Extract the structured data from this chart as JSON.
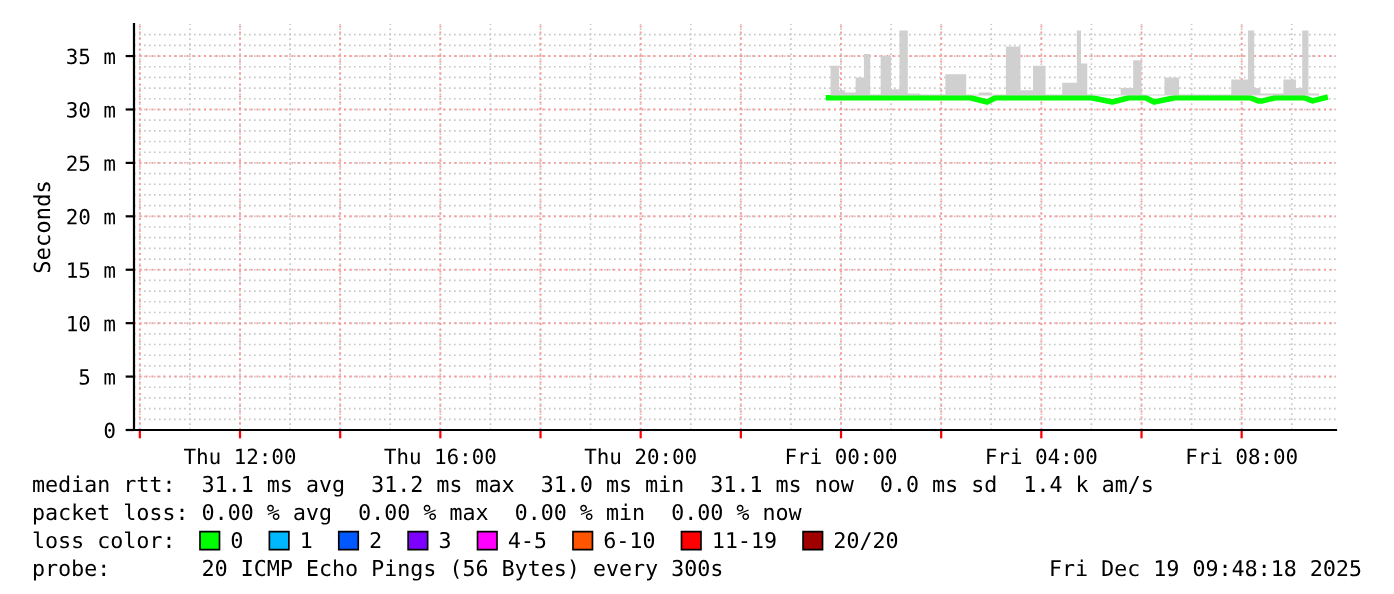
{
  "chart_data": {
    "type": "line",
    "ylabel": "Seconds",
    "legend_title": "loss color:",
    "x": [
      "2025-12-18T23:45",
      "2025-12-18T23:50",
      "2025-12-18T23:55",
      "2025-12-19T00:00",
      "2025-12-19T00:10",
      "2025-12-19T00:25",
      "2025-12-19T00:30",
      "2025-12-19T00:40",
      "2025-12-19T00:55",
      "2025-12-19T01:05",
      "2025-12-19T01:15",
      "2025-12-19T01:25",
      "2025-12-19T01:45",
      "2025-12-19T02:25",
      "2025-12-19T02:35",
      "2025-12-19T02:55",
      "2025-12-19T03:05",
      "2025-12-19T03:30",
      "2025-12-19T03:40",
      "2025-12-19T04:00",
      "2025-12-19T04:10",
      "2025-12-19T04:40",
      "2025-12-19T04:45",
      "2025-12-19T04:50",
      "2025-12-19T05:00",
      "2025-12-19T05:25",
      "2025-12-19T05:45",
      "2025-12-19T05:55",
      "2025-12-19T06:05",
      "2025-12-19T06:15",
      "2025-12-19T06:40",
      "2025-12-19T06:50",
      "2025-12-19T07:30",
      "2025-12-19T08:05",
      "2025-12-19T08:10",
      "2025-12-19T08:20",
      "2025-12-19T08:25",
      "2025-12-19T08:40",
      "2025-12-19T09:00",
      "2025-12-19T09:10",
      "2025-12-19T09:15",
      "2025-12-19T09:25",
      "2025-12-19T09:40"
    ],
    "series": [
      {
        "name": "0",
        "color": "#00ff00",
        "values": [
          31.1,
          31.1,
          31.1,
          31.1,
          31.1,
          31.1,
          31.1,
          31.1,
          31.1,
          31.1,
          31.1,
          31.1,
          31.1,
          31.1,
          31.1,
          30.7,
          31.1,
          31.1,
          31.1,
          31.1,
          31.1,
          31.1,
          31.1,
          31.1,
          31.1,
          30.7,
          31.1,
          31.1,
          31.1,
          30.7,
          31.1,
          31.1,
          31.1,
          31.1,
          31.1,
          30.8,
          30.8,
          31.1,
          31.1,
          31.1,
          31.1,
          30.8,
          31.1
        ],
        "lower": [
          31.3,
          31.3,
          31.3,
          31.3,
          31.3,
          31.3,
          31.3,
          31.3,
          31.3,
          31.3,
          31.3,
          31.3,
          31.3,
          31.3,
          31.3,
          31.3,
          31.3,
          31.3,
          31.3,
          31.3,
          31.3,
          31.3,
          31.3,
          31.3,
          31.3,
          31.3,
          31.3,
          31.3,
          31.3,
          31.3,
          31.3,
          31.3,
          31.3,
          31.3,
          31.3,
          31.3,
          31.3,
          31.3,
          31.3,
          31.3,
          31.3,
          31.3,
          31.3
        ],
        "upper": [
          31.3,
          34.1,
          34.1,
          31.8,
          31.6,
          33.0,
          35.2,
          31.4,
          35.0,
          31.9,
          37.4,
          31.5,
          31.4,
          33.3,
          31.4,
          31.6,
          31.4,
          35.9,
          31.8,
          34.1,
          31.4,
          32.5,
          37.4,
          34.3,
          31.4,
          31.4,
          32.0,
          34.6,
          31.4,
          31.4,
          33.0,
          31.4,
          31.4,
          32.8,
          37.4,
          32.0,
          31.5,
          31.5,
          32.8,
          32.0,
          37.4,
          31.5,
          31.3
        ]
      },
      {
        "name": "1",
        "color": "#00b8ff",
        "values": [
          null,
          null,
          null,
          null,
          null,
          null,
          null,
          null,
          null,
          null,
          null,
          null,
          null,
          null,
          null,
          null,
          null,
          null,
          null,
          null,
          null,
          null,
          null,
          null,
          null,
          null,
          null,
          null,
          null,
          null,
          null,
          null,
          null,
          null,
          null,
          null,
          null,
          null,
          null,
          null,
          null,
          null,
          null
        ]
      },
      {
        "name": "2",
        "color": "#0059ff",
        "values": [
          null,
          null,
          null,
          null,
          null,
          null,
          null,
          null,
          null,
          null,
          null,
          null,
          null,
          null,
          null,
          null,
          null,
          null,
          null,
          null,
          null,
          null,
          null,
          null,
          null,
          null,
          null,
          null,
          null,
          null,
          null,
          null,
          null,
          null,
          null,
          null,
          null,
          null,
          null,
          null,
          null,
          null,
          null
        ]
      },
      {
        "name": "3",
        "color": "#7e00ff",
        "values": [
          null,
          null,
          null,
          null,
          null,
          null,
          null,
          null,
          null,
          null,
          null,
          null,
          null,
          null,
          null,
          null,
          null,
          null,
          null,
          null,
          null,
          null,
          null,
          null,
          null,
          null,
          null,
          null,
          null,
          null,
          null,
          null,
          null,
          null,
          null,
          null,
          null,
          null,
          null,
          null,
          null,
          null,
          null
        ]
      },
      {
        "name": "4-5",
        "color": "#ff00ff",
        "values": [
          null,
          null,
          null,
          null,
          null,
          null,
          null,
          null,
          null,
          null,
          null,
          null,
          null,
          null,
          null,
          null,
          null,
          null,
          null,
          null,
          null,
          null,
          null,
          null,
          null,
          null,
          null,
          null,
          null,
          null,
          null,
          null,
          null,
          null,
          null,
          null,
          null,
          null,
          null,
          null,
          null,
          null,
          null
        ]
      },
      {
        "name": "6-10",
        "color": "#ff5500",
        "values": [
          null,
          null,
          null,
          null,
          null,
          null,
          null,
          null,
          null,
          null,
          null,
          null,
          null,
          null,
          null,
          null,
          null,
          null,
          null,
          null,
          null,
          null,
          null,
          null,
          null,
          null,
          null,
          null,
          null,
          null,
          null,
          null,
          null,
          null,
          null,
          null,
          null,
          null,
          null,
          null,
          null,
          null,
          null
        ]
      },
      {
        "name": "11-19",
        "color": "#ff0000",
        "values": [
          null,
          null,
          null,
          null,
          null,
          null,
          null,
          null,
          null,
          null,
          null,
          null,
          null,
          null,
          null,
          null,
          null,
          null,
          null,
          null,
          null,
          null,
          null,
          null,
          null,
          null,
          null,
          null,
          null,
          null,
          null,
          null,
          null,
          null,
          null,
          null,
          null,
          null,
          null,
          null,
          null,
          null,
          null
        ]
      },
      {
        "name": "20/20",
        "color": "#a10000",
        "values": [
          null,
          null,
          null,
          null,
          null,
          null,
          null,
          null,
          null,
          null,
          null,
          null,
          null,
          null,
          null,
          null,
          null,
          null,
          null,
          null,
          null,
          null,
          null,
          null,
          null,
          null,
          null,
          null,
          null,
          null,
          null,
          null,
          null,
          null,
          null,
          null,
          null,
          null,
          null,
          null,
          null,
          null,
          null
        ]
      }
    ],
    "xlim": [
      "2025-12-18T09:53",
      "2025-12-19T09:53"
    ],
    "xticks": [
      {
        "value": "2025-12-18T10:00",
        "label": null
      },
      {
        "value": "2025-12-18T12:00",
        "label": "Thu 12:00"
      },
      {
        "value": "2025-12-18T14:00",
        "label": null
      },
      {
        "value": "2025-12-18T16:00",
        "label": "Thu 16:00"
      },
      {
        "value": "2025-12-18T18:00",
        "label": null
      },
      {
        "value": "2025-12-18T20:00",
        "label": "Thu 20:00"
      },
      {
        "value": "2025-12-18T22:00",
        "label": null
      },
      {
        "value": "2025-12-19T00:00",
        "label": "Fri 00:00"
      },
      {
        "value": "2025-12-19T02:00",
        "label": null
      },
      {
        "value": "2025-12-19T04:00",
        "label": "Fri 04:00"
      },
      {
        "value": "2025-12-19T06:00",
        "label": null
      },
      {
        "value": "2025-12-19T08:00",
        "label": "Fri 08:00"
      }
    ],
    "ylim": [
      0,
      38
    ],
    "yticks": [
      0,
      {
        "value": 5,
        "label": "5 m"
      },
      {
        "value": 10,
        "label": "10 m"
      },
      {
        "value": 15,
        "label": "15 m"
      },
      {
        "value": 20,
        "label": "20 m"
      },
      {
        "value": 25,
        "label": "25 m"
      },
      {
        "value": 30,
        "label": "30 m"
      },
      {
        "value": 35,
        "label": "35 m"
      }
    ],
    "grid": true,
    "legend": "bottom",
    "annotations": [
      "median rtt:  31.1 ms avg  31.2 ms max  31.0 ms min  31.1 ms now  0.0 ms sd  1.4 k am/s",
      "packet loss: 0.00 % avg  0.00 % max  0.00 % min  0.00 % now",
      "probe:       20 ICMP Echo Pings (56 Bytes) every 300s",
      "Fri Dec 19 09:48:18 2025"
    ]
  }
}
